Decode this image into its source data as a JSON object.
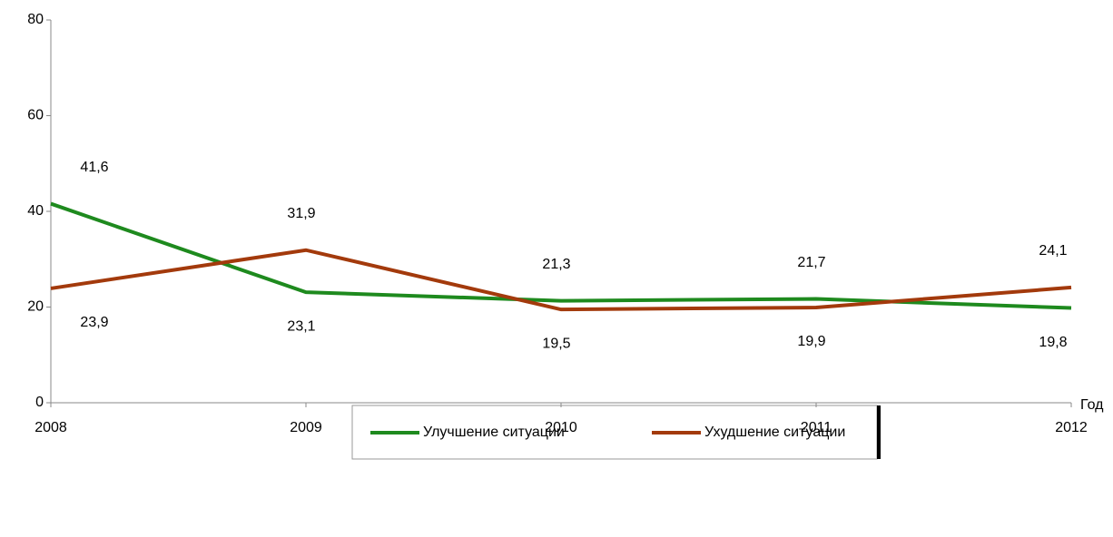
{
  "chart_data": {
    "type": "line",
    "x": [
      2008,
      2009,
      2010,
      2011,
      2012
    ],
    "xlim": [
      2008,
      2012
    ],
    "xticks": [
      2008,
      2009,
      2010,
      2011,
      2012
    ],
    "x_label": "Год",
    "ylim": [
      0,
      80
    ],
    "yticks": [
      0,
      20,
      40,
      60,
      80
    ],
    "series": [
      {
        "name": "Улучшение ситуации",
        "color": "#1e8a1e",
        "values": [
          41.6,
          23.1,
          21.3,
          21.7,
          19.8
        ],
        "value_labels": [
          "41,6",
          "23,1",
          "21,3",
          "21,7",
          "19,8"
        ]
      },
      {
        "name": "Ухудшение ситуации",
        "color": "#a33a0c",
        "values": [
          23.9,
          31.9,
          19.5,
          19.9,
          24.1
        ],
        "value_labels": [
          "23,9",
          "31,9",
          "19,5",
          "19,9",
          "24,1"
        ]
      }
    ],
    "legend": "bottom",
    "grid": false
  }
}
